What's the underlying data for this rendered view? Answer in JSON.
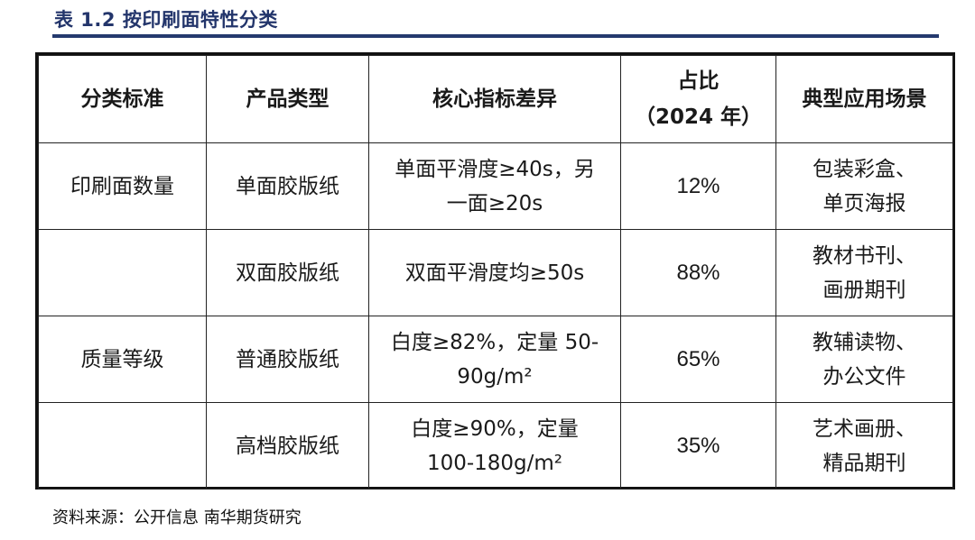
{
  "caption": "表 1.2 按印刷面特性分类",
  "headers": {
    "category": "分类标准",
    "product": "产品类型",
    "diff": "核心指标差异",
    "share_line1": "占比",
    "share_line2": "（2024 年）",
    "scene": "典型应用场景"
  },
  "rows": [
    {
      "category": "印刷面数量",
      "product": "单面胶版纸",
      "diff_line1": "单面平滑度≥40s，另",
      "diff_line2": "一面≥20s",
      "share": "12%",
      "scene_line1": "包装彩盒、",
      "scene_line2": "单页海报"
    },
    {
      "category": "",
      "product": "双面胶版纸",
      "diff_line1": "双面平滑度均≥50s",
      "diff_line2": "",
      "share": "88%",
      "scene_line1": "教材书刊、",
      "scene_line2": "画册期刊"
    },
    {
      "category": "质量等级",
      "product": "普通胶版纸",
      "diff_line1": "白度≥82%，定量 50-",
      "diff_line2": "90g/m²",
      "share": "65%",
      "scene_line1": "教辅读物、",
      "scene_line2": "办公文件"
    },
    {
      "category": "",
      "product": "高档胶版纸",
      "diff_line1": "白度≥90%，定量",
      "diff_line2": "100-180g/m²",
      "share": "35%",
      "scene_line1": "艺术画册、",
      "scene_line2": "精品期刊"
    }
  ],
  "source": "资料来源：公开信息   南华期货研究"
}
